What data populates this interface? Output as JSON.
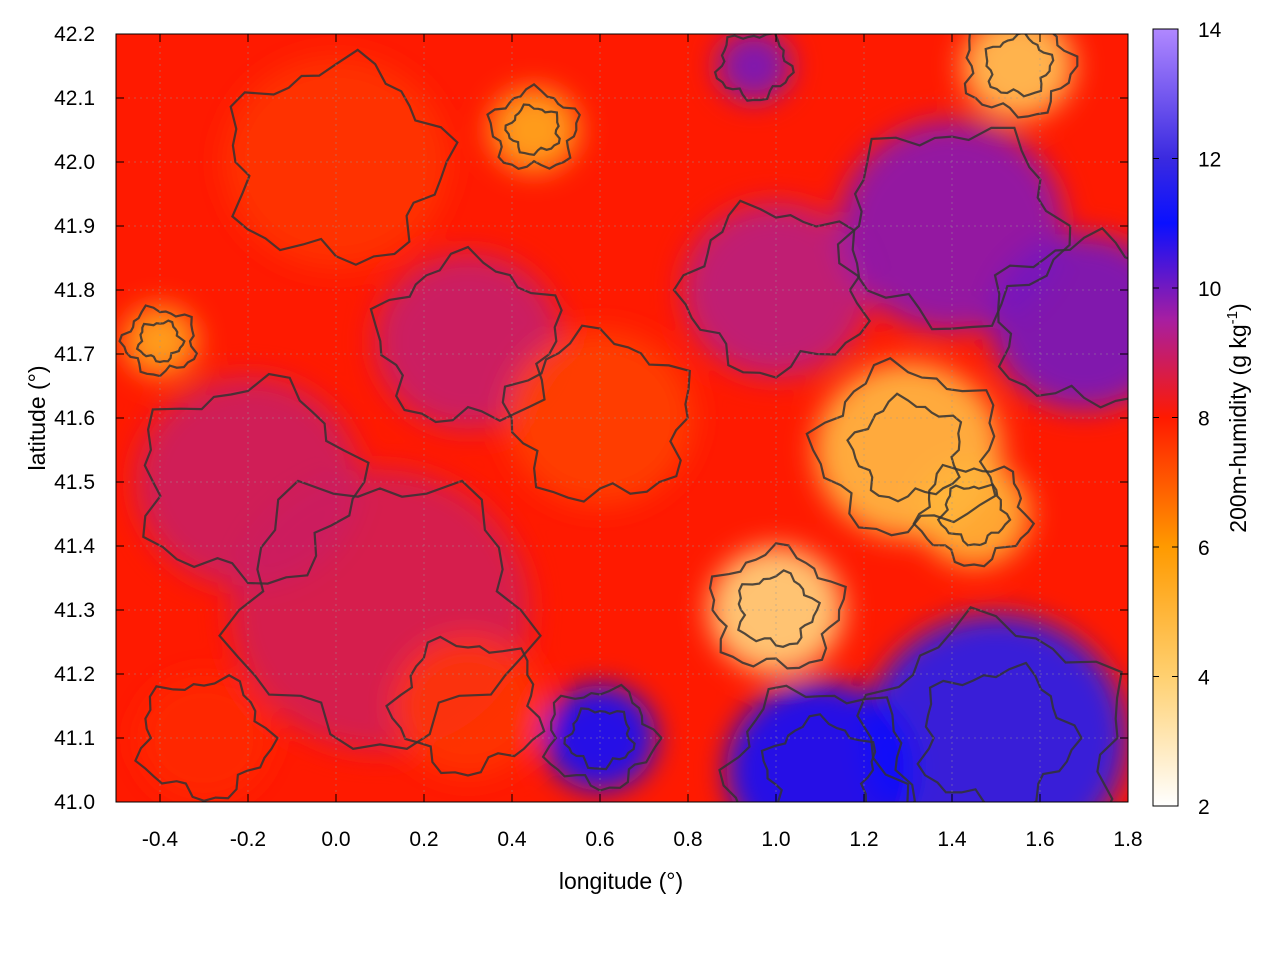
{
  "chart_data": {
    "type": "heatmap",
    "xlabel": "longitude (°)",
    "ylabel": "latitude (°)",
    "xlim": [
      -0.5,
      1.8
    ],
    "ylim": [
      41.0,
      42.2
    ],
    "x_ticks": [
      -0.4,
      -0.2,
      0.0,
      0.2,
      0.4,
      0.6,
      0.8,
      1.0,
      1.2,
      1.4,
      1.6,
      1.8
    ],
    "x_tick_labels": [
      "-0.4",
      "-0.2",
      "0.0",
      "0.2",
      "0.4",
      "0.6",
      "0.8",
      "1.0",
      "1.2",
      "1.4",
      "1.6",
      "1.8"
    ],
    "y_ticks": [
      41.0,
      41.1,
      41.2,
      41.3,
      41.4,
      41.5,
      41.6,
      41.7,
      41.8,
      41.9,
      42.0,
      42.1,
      42.2
    ],
    "y_tick_labels": [
      "41.0",
      "41.1",
      "41.2",
      "41.3",
      "41.4",
      "41.5",
      "41.6",
      "41.7",
      "41.8",
      "41.9",
      "42.0",
      "42.1",
      "42.2"
    ],
    "grid": true,
    "colorbar": {
      "label_main": "200m-humidity (g kg",
      "label_sup": "-1",
      "label_end": ")",
      "range": [
        2,
        14
      ],
      "ticks": [
        2,
        4,
        6,
        8,
        10,
        12,
        14
      ],
      "tick_labels": [
        "2",
        "4",
        "6",
        "8",
        "10",
        "12",
        "14"
      ],
      "stops": [
        {
          "value": 2,
          "color": "#ffffff"
        },
        {
          "value": 4,
          "color": "#ffd070"
        },
        {
          "value": 6,
          "color": "#ff9a00"
        },
        {
          "value": 8,
          "color": "#ff1a00"
        },
        {
          "value": 9.5,
          "color": "#a81ea0"
        },
        {
          "value": 11,
          "color": "#0a10ff"
        },
        {
          "value": 12,
          "color": "#3a2ae0"
        },
        {
          "value": 14,
          "color": "#b088ff"
        }
      ]
    },
    "field_regions": [
      {
        "lon": 0.1,
        "lat": 41.3,
        "r": 0.4,
        "value": 8.8
      },
      {
        "lon": -0.2,
        "lat": 41.5,
        "r": 0.3,
        "value": 8.9
      },
      {
        "lon": 0.3,
        "lat": 41.72,
        "r": 0.25,
        "value": 9.0
      },
      {
        "lon": 1.0,
        "lat": 41.8,
        "r": 0.25,
        "value": 9.2
      },
      {
        "lon": 1.4,
        "lat": 41.9,
        "r": 0.3,
        "value": 9.8
      },
      {
        "lon": 1.7,
        "lat": 41.75,
        "r": 0.25,
        "value": 10.0
      },
      {
        "lon": 1.5,
        "lat": 41.1,
        "r": 0.35,
        "value": 11.5
      },
      {
        "lon": 1.1,
        "lat": 41.05,
        "r": 0.25,
        "value": 11.0
      },
      {
        "lon": 0.6,
        "lat": 41.1,
        "r": 0.15,
        "value": 11.0
      },
      {
        "lon": 1.0,
        "lat": 41.3,
        "r": 0.18,
        "value": 3.8
      },
      {
        "lon": 1.3,
        "lat": 41.55,
        "r": 0.25,
        "value": 4.8
      },
      {
        "lon": 1.45,
        "lat": 41.45,
        "r": 0.15,
        "value": 5.0
      },
      {
        "lon": 1.55,
        "lat": 42.15,
        "r": 0.15,
        "value": 4.5
      },
      {
        "lon": 0.45,
        "lat": 42.05,
        "r": 0.12,
        "value": 5.5
      },
      {
        "lon": -0.4,
        "lat": 41.72,
        "r": 0.1,
        "value": 5.5
      },
      {
        "lon": 0.95,
        "lat": 42.15,
        "r": 0.1,
        "value": 10.0
      },
      {
        "lon": 0.0,
        "lat": 42.0,
        "r": 0.3,
        "value": 7.6
      },
      {
        "lon": 0.6,
        "lat": 41.6,
        "r": 0.25,
        "value": 7.4
      },
      {
        "lon": 0.3,
        "lat": 41.15,
        "r": 0.2,
        "value": 7.6
      },
      {
        "lon": -0.3,
        "lat": 41.1,
        "r": 0.18,
        "value": 7.8
      }
    ],
    "background_value": 8.0,
    "contour_levels": [
      6,
      8,
      10
    ]
  }
}
